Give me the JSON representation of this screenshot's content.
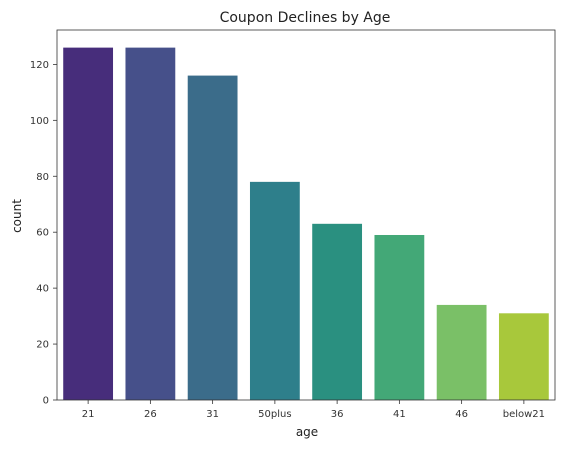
{
  "chart_data": {
    "type": "bar",
    "title": "Coupon Declines by Age",
    "xlabel": "age",
    "ylabel": "count",
    "categories": [
      "21",
      "26",
      "31",
      "50plus",
      "36",
      "41",
      "46",
      "below21"
    ],
    "values": [
      126,
      126,
      116,
      78,
      63,
      59,
      34,
      31
    ],
    "ylim": [
      0,
      132.3
    ],
    "yticks": [
      "0",
      "20",
      "40",
      "60",
      "80",
      "100",
      "120"
    ],
    "grid": false,
    "colors": [
      "#472d7b",
      "#46508a",
      "#3b6c8a",
      "#2e7f8b",
      "#2a9080",
      "#43a877",
      "#7ac067",
      "#a8c83b"
    ]
  }
}
